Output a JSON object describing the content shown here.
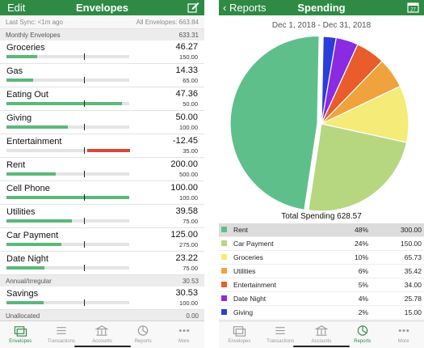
{
  "envelopes_screen": {
    "nav": {
      "left_label": "Edit",
      "title": "Envelopes",
      "right_icon": "edit-icon"
    },
    "sync": {
      "last_sync": "Last Sync: <1m ago",
      "all_envelopes": "All Envelopes: 663.84"
    },
    "sections": [
      {
        "name": "Monthly Envelopes",
        "total": "633.31"
      },
      {
        "name": "Annual/Irregular",
        "total": "30.53"
      },
      {
        "name": "Unallocated",
        "total": "0.00"
      }
    ],
    "monthly": [
      {
        "name": "Groceries",
        "amount": "46.27",
        "budget": "150.00",
        "fill": 0.25,
        "color": "#5cb87a"
      },
      {
        "name": "Gas",
        "amount": "14.33",
        "budget": "65.00",
        "fill": 0.22,
        "color": "#5cb87a"
      },
      {
        "name": "Eating Out",
        "amount": "47.36",
        "budget": "50.00",
        "fill": 0.94,
        "color": "#5cb87a"
      },
      {
        "name": "Giving",
        "amount": "50.00",
        "budget": "100.00",
        "fill": 0.5,
        "color": "#5cb87a"
      },
      {
        "name": "Entertainment",
        "amount": "-12.45",
        "budget": "35.00",
        "fill": 0.35,
        "color": "#d9463b",
        "negative": true
      },
      {
        "name": "Rent",
        "amount": "200.00",
        "budget": "500.00",
        "fill": 0.4,
        "color": "#5cb87a"
      },
      {
        "name": "Cell Phone",
        "amount": "100.00",
        "budget": "100.00",
        "fill": 1.0,
        "color": "#5cb87a"
      },
      {
        "name": "Utilities",
        "amount": "39.58",
        "budget": "75.00",
        "fill": 0.53,
        "color": "#5cb87a"
      },
      {
        "name": "Car Payment",
        "amount": "125.00",
        "budget": "275.00",
        "fill": 0.45,
        "color": "#5cb87a"
      },
      {
        "name": "Date Night",
        "amount": "23.22",
        "budget": "75.00",
        "fill": 0.31,
        "color": "#5cb87a"
      }
    ],
    "annual": [
      {
        "name": "Savings",
        "amount": "30.53",
        "budget": "100.00",
        "fill": 0.3,
        "color": "#5cb87a"
      }
    ],
    "tabs": [
      {
        "label": "Envelopes",
        "icon": "envelopes-icon",
        "active": true
      },
      {
        "label": "Transactions",
        "icon": "transactions-icon",
        "active": false
      },
      {
        "label": "Accounts",
        "icon": "accounts-icon",
        "active": false
      },
      {
        "label": "Reports",
        "icon": "reports-icon",
        "active": false
      },
      {
        "label": "More",
        "icon": "more-icon",
        "active": false
      }
    ]
  },
  "spending_screen": {
    "nav": {
      "back_label": "Reports",
      "title": "Spending",
      "right_icon": "calendar-icon",
      "calendar_day": "27"
    },
    "date_range": "Dec 1, 2018 - Dec 31, 2018",
    "total_label": "Total Spending 628.57",
    "tabs": [
      {
        "label": "Envelopes",
        "icon": "envelopes-icon",
        "active": false
      },
      {
        "label": "Transactions",
        "icon": "transactions-icon",
        "active": false
      },
      {
        "label": "Accounts",
        "icon": "accounts-icon",
        "active": false
      },
      {
        "label": "Reports",
        "icon": "reports-icon",
        "active": true
      },
      {
        "label": "More",
        "icon": "more-icon",
        "active": false
      }
    ]
  },
  "chart_data": {
    "type": "pie",
    "title": "Total Spending 628.57",
    "slices": [
      {
        "name": "Rent",
        "pct": "48%",
        "amount": "300.00",
        "value": 300.0,
        "color": "#5fbf8b"
      },
      {
        "name": "Car Payment",
        "pct": "24%",
        "amount": "150.00",
        "value": 150.0,
        "color": "#b6d77f"
      },
      {
        "name": "Groceries",
        "pct": "10%",
        "amount": "65.73",
        "value": 65.73,
        "color": "#f4eb78"
      },
      {
        "name": "Utilities",
        "pct": "6%",
        "amount": "35.42",
        "value": 35.42,
        "color": "#f0a33c"
      },
      {
        "name": "Entertainment",
        "pct": "5%",
        "amount": "34.00",
        "value": 34.0,
        "color": "#e85d2b"
      },
      {
        "name": "Date Night",
        "pct": "4%",
        "amount": "25.78",
        "value": 25.78,
        "color": "#8a2be2"
      },
      {
        "name": "Giving",
        "pct": "2%",
        "amount": "15.00",
        "value": 15.0,
        "color": "#2b3ddb"
      }
    ],
    "selected": "Rent"
  }
}
